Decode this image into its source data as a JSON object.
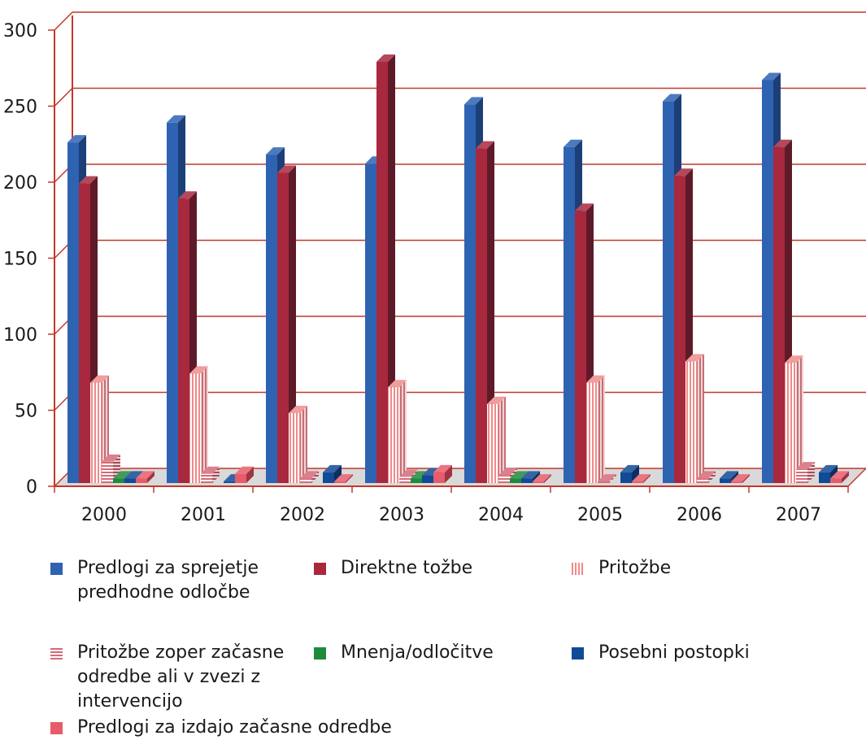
{
  "chart_data": {
    "type": "bar",
    "categories": [
      "2000",
      "2001",
      "2002",
      "2003",
      "2004",
      "2005",
      "2006",
      "2007"
    ],
    "ylim": [
      0,
      300
    ],
    "yticks": [
      "0",
      "50",
      "100",
      "150",
      "200",
      "250",
      "300"
    ],
    "grid": true,
    "legend_position": "bottom",
    "series": [
      {
        "name": "Predlogi za sprejetje predhodne odločbe",
        "color": "#2e63b2",
        "side": "#1c3f78",
        "values": [
          224,
          237,
          216,
          210,
          249,
          221,
          251,
          265
        ]
      },
      {
        "name": "Direktne tožbe",
        "color": "#a8283e",
        "side": "#5e1a28",
        "values": [
          197,
          187,
          204,
          277,
          220,
          179,
          202,
          221
        ]
      },
      {
        "name": "Pritožbe",
        "color": "#f08a8a",
        "side": "#c46f74",
        "pattern": "vertical",
        "values": [
          66,
          72,
          46,
          63,
          52,
          66,
          80,
          79
        ]
      },
      {
        "name": "Pritožbe zoper začasne odredbe ali v zvezi z intervencijo",
        "color": "#d56a78",
        "side": "#a04f5a",
        "pattern": "horizontal",
        "values": [
          14,
          6,
          3,
          4,
          5,
          1,
          3,
          9
        ]
      },
      {
        "name": "Mnenja/odločitve",
        "color": "#1e8a3c",
        "side": "#12592a",
        "values": [
          3,
          0,
          0,
          3,
          3,
          0,
          0,
          0
        ]
      },
      {
        "name": "Posebni postopki",
        "color": "#114a96",
        "side": "#0a2f63",
        "values": [
          3,
          1,
          7,
          5,
          3,
          7,
          3,
          7
        ]
      },
      {
        "name": "Predlogi za izdajo začasne odredbe",
        "color": "#e65c6a",
        "side": "#9f3442",
        "values": [
          3,
          6,
          1,
          7,
          1,
          1,
          1,
          3
        ]
      }
    ]
  }
}
